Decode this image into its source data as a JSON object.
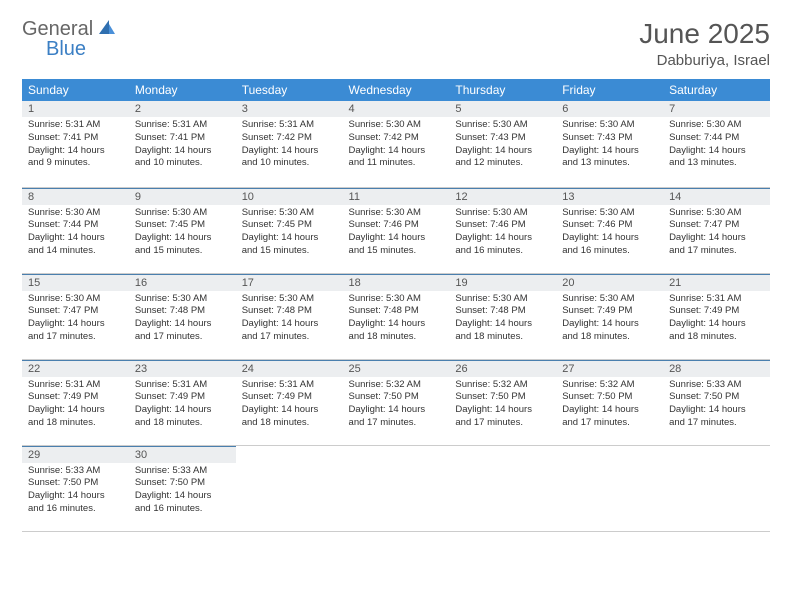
{
  "logo": {
    "part1": "General",
    "part2": "Blue"
  },
  "title": "June 2025",
  "location": "Dabburiya, Israel",
  "colors": {
    "header_bg": "#3b8bd4",
    "header_text": "#ffffff",
    "daynum_bg": "#eceef0",
    "row_divider": "#4a7fae",
    "body_text": "#333333",
    "logo_gray": "#666666",
    "logo_blue": "#3b7fc4",
    "page_bg": "#ffffff"
  },
  "weekdays": [
    "Sunday",
    "Monday",
    "Tuesday",
    "Wednesday",
    "Thursday",
    "Friday",
    "Saturday"
  ],
  "weeks": [
    [
      {
        "n": "1",
        "sr": "5:31 AM",
        "ss": "7:41 PM",
        "dl": "14 hours and 9 minutes."
      },
      {
        "n": "2",
        "sr": "5:31 AM",
        "ss": "7:41 PM",
        "dl": "14 hours and 10 minutes."
      },
      {
        "n": "3",
        "sr": "5:31 AM",
        "ss": "7:42 PM",
        "dl": "14 hours and 10 minutes."
      },
      {
        "n": "4",
        "sr": "5:30 AM",
        "ss": "7:42 PM",
        "dl": "14 hours and 11 minutes."
      },
      {
        "n": "5",
        "sr": "5:30 AM",
        "ss": "7:43 PM",
        "dl": "14 hours and 12 minutes."
      },
      {
        "n": "6",
        "sr": "5:30 AM",
        "ss": "7:43 PM",
        "dl": "14 hours and 13 minutes."
      },
      {
        "n": "7",
        "sr": "5:30 AM",
        "ss": "7:44 PM",
        "dl": "14 hours and 13 minutes."
      }
    ],
    [
      {
        "n": "8",
        "sr": "5:30 AM",
        "ss": "7:44 PM",
        "dl": "14 hours and 14 minutes."
      },
      {
        "n": "9",
        "sr": "5:30 AM",
        "ss": "7:45 PM",
        "dl": "14 hours and 15 minutes."
      },
      {
        "n": "10",
        "sr": "5:30 AM",
        "ss": "7:45 PM",
        "dl": "14 hours and 15 minutes."
      },
      {
        "n": "11",
        "sr": "5:30 AM",
        "ss": "7:46 PM",
        "dl": "14 hours and 15 minutes."
      },
      {
        "n": "12",
        "sr": "5:30 AM",
        "ss": "7:46 PM",
        "dl": "14 hours and 16 minutes."
      },
      {
        "n": "13",
        "sr": "5:30 AM",
        "ss": "7:46 PM",
        "dl": "14 hours and 16 minutes."
      },
      {
        "n": "14",
        "sr": "5:30 AM",
        "ss": "7:47 PM",
        "dl": "14 hours and 17 minutes."
      }
    ],
    [
      {
        "n": "15",
        "sr": "5:30 AM",
        "ss": "7:47 PM",
        "dl": "14 hours and 17 minutes."
      },
      {
        "n": "16",
        "sr": "5:30 AM",
        "ss": "7:48 PM",
        "dl": "14 hours and 17 minutes."
      },
      {
        "n": "17",
        "sr": "5:30 AM",
        "ss": "7:48 PM",
        "dl": "14 hours and 17 minutes."
      },
      {
        "n": "18",
        "sr": "5:30 AM",
        "ss": "7:48 PM",
        "dl": "14 hours and 18 minutes."
      },
      {
        "n": "19",
        "sr": "5:30 AM",
        "ss": "7:48 PM",
        "dl": "14 hours and 18 minutes."
      },
      {
        "n": "20",
        "sr": "5:30 AM",
        "ss": "7:49 PM",
        "dl": "14 hours and 18 minutes."
      },
      {
        "n": "21",
        "sr": "5:31 AM",
        "ss": "7:49 PM",
        "dl": "14 hours and 18 minutes."
      }
    ],
    [
      {
        "n": "22",
        "sr": "5:31 AM",
        "ss": "7:49 PM",
        "dl": "14 hours and 18 minutes."
      },
      {
        "n": "23",
        "sr": "5:31 AM",
        "ss": "7:49 PM",
        "dl": "14 hours and 18 minutes."
      },
      {
        "n": "24",
        "sr": "5:31 AM",
        "ss": "7:49 PM",
        "dl": "14 hours and 18 minutes."
      },
      {
        "n": "25",
        "sr": "5:32 AM",
        "ss": "7:50 PM",
        "dl": "14 hours and 17 minutes."
      },
      {
        "n": "26",
        "sr": "5:32 AM",
        "ss": "7:50 PM",
        "dl": "14 hours and 17 minutes."
      },
      {
        "n": "27",
        "sr": "5:32 AM",
        "ss": "7:50 PM",
        "dl": "14 hours and 17 minutes."
      },
      {
        "n": "28",
        "sr": "5:33 AM",
        "ss": "7:50 PM",
        "dl": "14 hours and 17 minutes."
      }
    ],
    [
      {
        "n": "29",
        "sr": "5:33 AM",
        "ss": "7:50 PM",
        "dl": "14 hours and 16 minutes."
      },
      {
        "n": "30",
        "sr": "5:33 AM",
        "ss": "7:50 PM",
        "dl": "14 hours and 16 minutes."
      },
      null,
      null,
      null,
      null,
      null
    ]
  ],
  "labels": {
    "sunrise": "Sunrise:",
    "sunset": "Sunset:",
    "daylight": "Daylight:"
  }
}
